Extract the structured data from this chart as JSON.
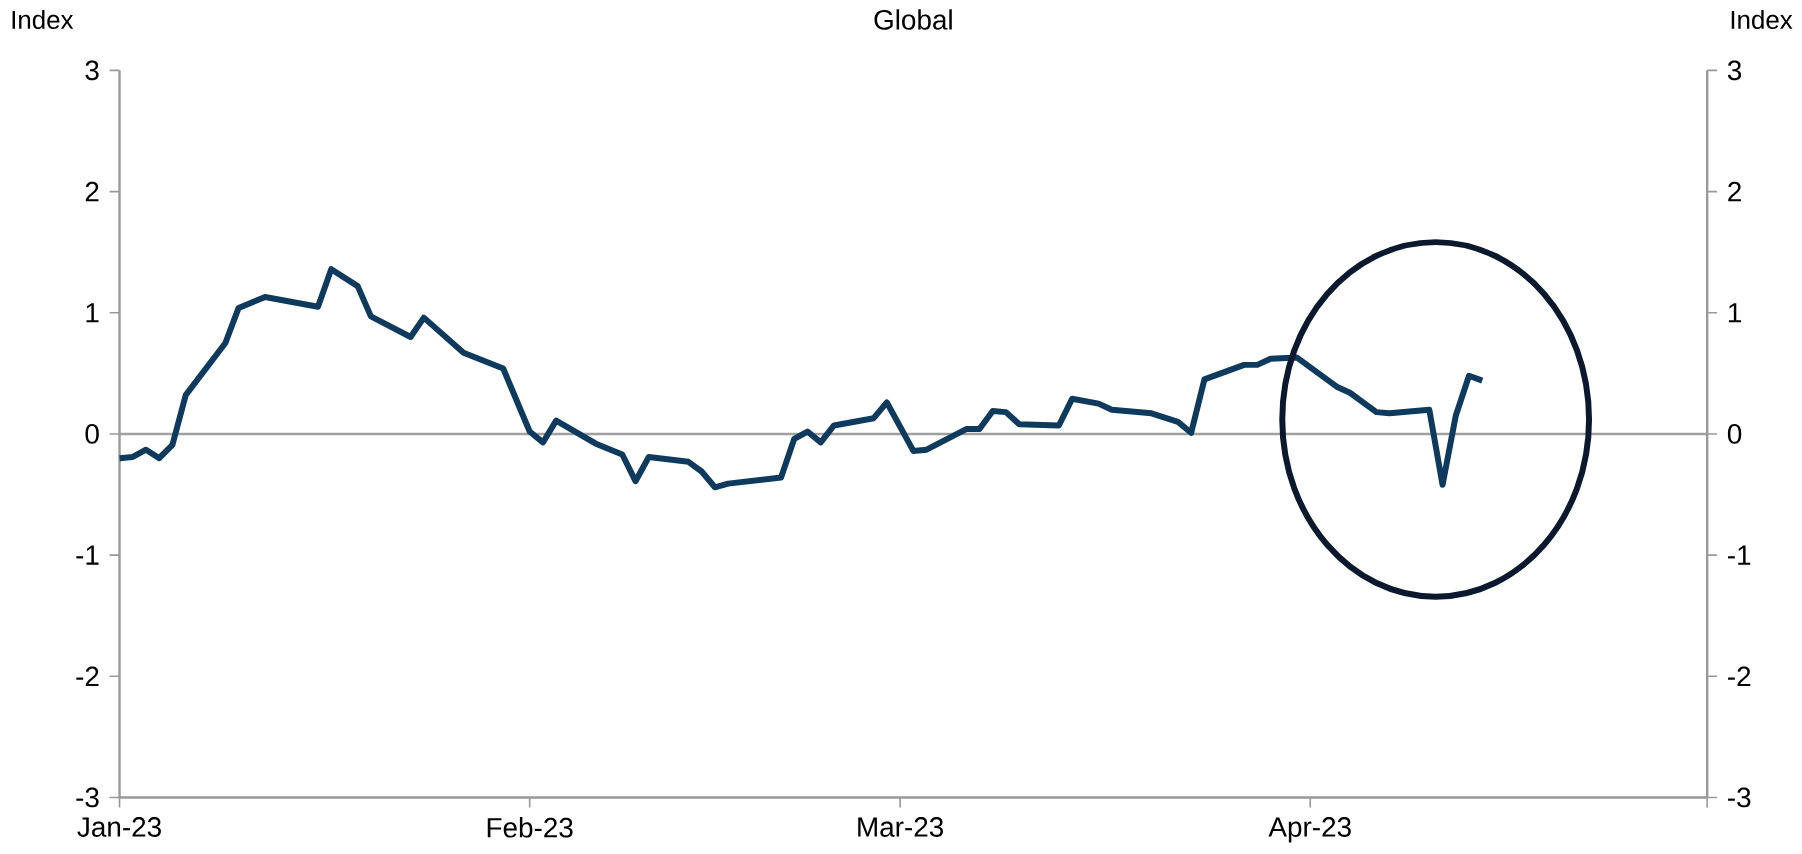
{
  "chart_data": {
    "type": "line",
    "title": "Global",
    "ylabel": "Index",
    "y2label": "Index",
    "xlim": [
      "2023-01-01",
      "2023-05-01"
    ],
    "xticks": [
      {
        "value": "2023-01-01",
        "label": "Jan-23"
      },
      {
        "value": "2023-02-01",
        "label": "Feb-23"
      },
      {
        "value": "2023-03-01",
        "label": "Mar-23"
      },
      {
        "value": "2023-04-01",
        "label": "Apr-23"
      },
      {
        "value": "2023-05-01",
        "label": null
      }
    ],
    "ylim": [
      -3,
      3
    ],
    "yticks": [
      -3,
      -2,
      -1,
      0,
      1,
      2,
      3
    ],
    "y2lim": [
      -3,
      3
    ],
    "y2ticks": [
      -3,
      -2,
      -1,
      0,
      1,
      2,
      3
    ],
    "ref_lines": [
      {
        "axis": "y",
        "value": 0,
        "color": "#a0a0a0"
      }
    ],
    "line_style": "solid",
    "marker": "none",
    "series": [
      {
        "color": "#0e3a5e",
        "x": [
          "2023-01-01",
          "2023-01-02",
          "2023-01-03",
          "2023-01-04",
          "2023-01-05",
          "2023-01-06",
          "2023-01-09",
          "2023-01-10",
          "2023-01-12",
          "2023-01-16",
          "2023-01-17",
          "2023-01-19",
          "2023-01-20",
          "2023-01-23",
          "2023-01-24",
          "2023-01-27",
          "2023-01-30",
          "2023-02-01",
          "2023-02-02",
          "2023-02-03",
          "2023-02-06",
          "2023-02-08",
          "2023-02-09",
          "2023-02-10",
          "2023-02-13",
          "2023-02-14",
          "2023-02-15",
          "2023-02-16",
          "2023-02-20",
          "2023-02-21",
          "2023-02-22",
          "2023-02-23",
          "2023-02-24",
          "2023-02-27",
          "2023-02-28",
          "2023-03-02",
          "2023-03-03",
          "2023-03-06",
          "2023-03-07",
          "2023-03-08",
          "2023-03-09",
          "2023-03-10",
          "2023-03-13",
          "2023-03-14",
          "2023-03-16",
          "2023-03-17",
          "2023-03-20",
          "2023-03-22",
          "2023-03-23",
          "2023-03-24",
          "2023-03-27",
          "2023-03-28",
          "2023-03-29",
          "2023-03-31",
          "2023-04-03",
          "2023-04-04",
          "2023-04-06",
          "2023-04-07",
          "2023-04-10",
          "2023-04-11",
          "2023-04-12",
          "2023-04-13",
          "2023-04-14"
        ],
        "values": [
          -0.2,
          -0.19,
          -0.13,
          -0.2,
          -0.09,
          0.32,
          0.75,
          1.04,
          1.13,
          1.05,
          1.36,
          1.22,
          0.97,
          0.8,
          0.96,
          0.67,
          0.54,
          0.02,
          -0.07,
          0.11,
          -0.08,
          -0.17,
          -0.39,
          -0.19,
          -0.23,
          -0.31,
          -0.44,
          -0.41,
          -0.36,
          -0.04,
          0.02,
          -0.07,
          0.07,
          0.13,
          0.26,
          -0.14,
          -0.13,
          0.04,
          0.04,
          0.19,
          0.18,
          0.08,
          0.07,
          0.29,
          0.25,
          0.2,
          0.17,
          0.1,
          0.01,
          0.45,
          0.57,
          0.57,
          0.62,
          0.63,
          0.39,
          0.34,
          0.18,
          0.17,
          0.2,
          -0.42,
          0.15,
          0.48,
          0.44
        ]
      }
    ]
  }
}
